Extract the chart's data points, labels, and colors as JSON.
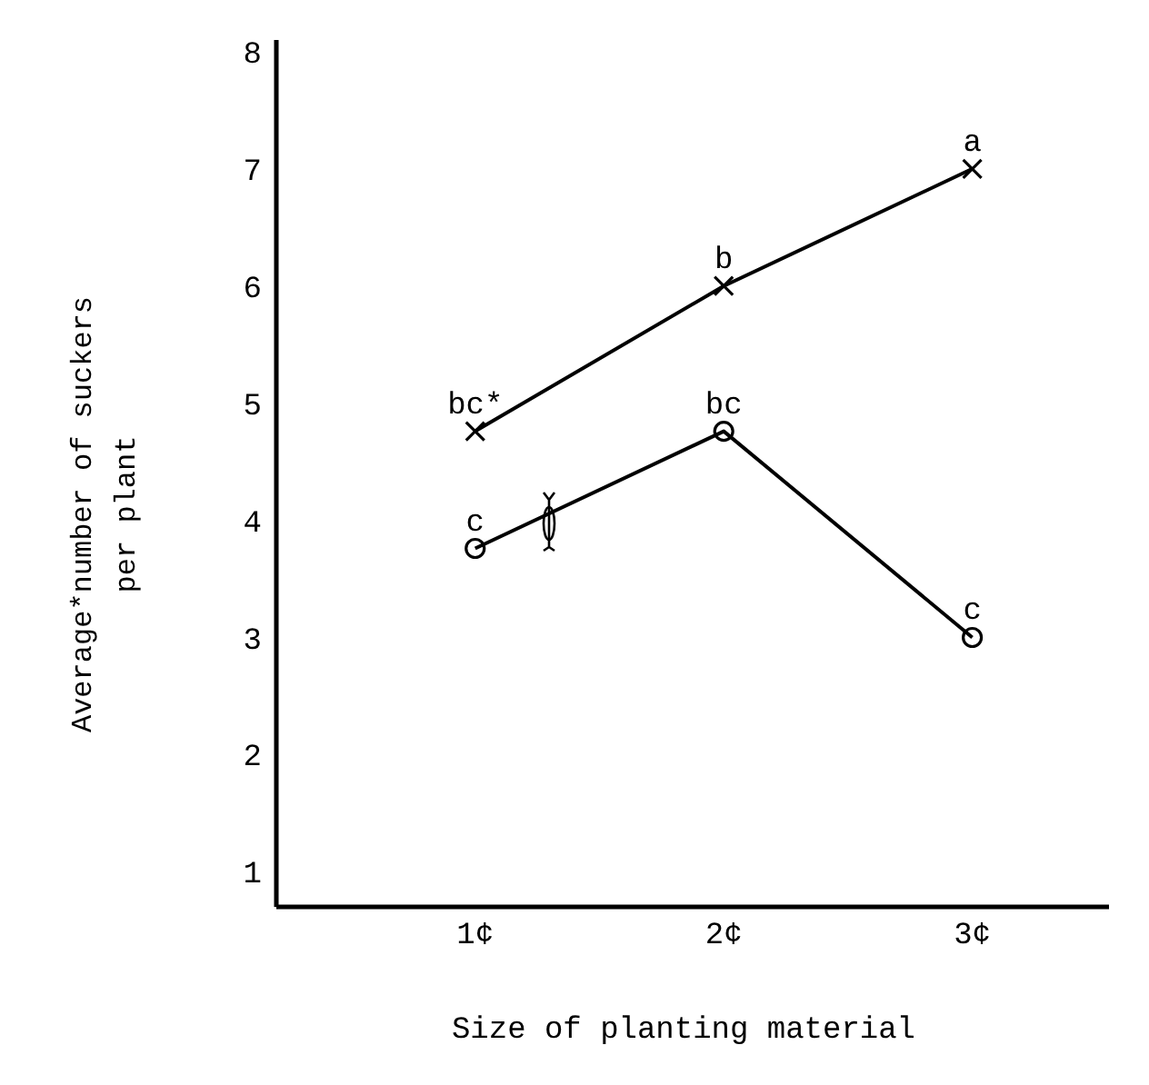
{
  "chart_data": {
    "type": "line",
    "xlabel": "Size of planting material",
    "ylabel": "Average*number of suckers\nper plant",
    "categories": [
      "1¢",
      "2¢",
      "3¢"
    ],
    "ylim": [
      0.7,
      8.1
    ],
    "yticks": [
      1,
      2,
      3,
      4,
      5,
      6,
      7,
      8
    ],
    "grid": false,
    "series": [
      {
        "color": "#000000",
        "marker": "cross",
        "values": [
          4.76,
          6.0,
          7.0
        ],
        "value_labels": [
          "bc*",
          "b",
          "a"
        ]
      },
      {
        "color": "#000000",
        "marker": "circle",
        "values": [
          3.76,
          4.76,
          3.0
        ],
        "value_labels": [
          "c",
          "bc",
          "c"
        ]
      }
    ]
  }
}
